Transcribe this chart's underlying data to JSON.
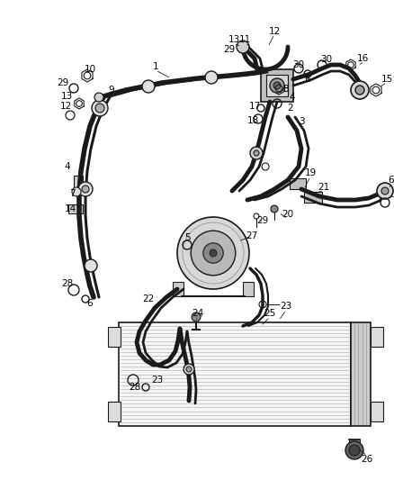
{
  "background_color": "#ffffff",
  "line_color": "#1a1a1a",
  "text_color": "#000000",
  "fig_width": 4.38,
  "fig_height": 5.33,
  "dpi": 100
}
